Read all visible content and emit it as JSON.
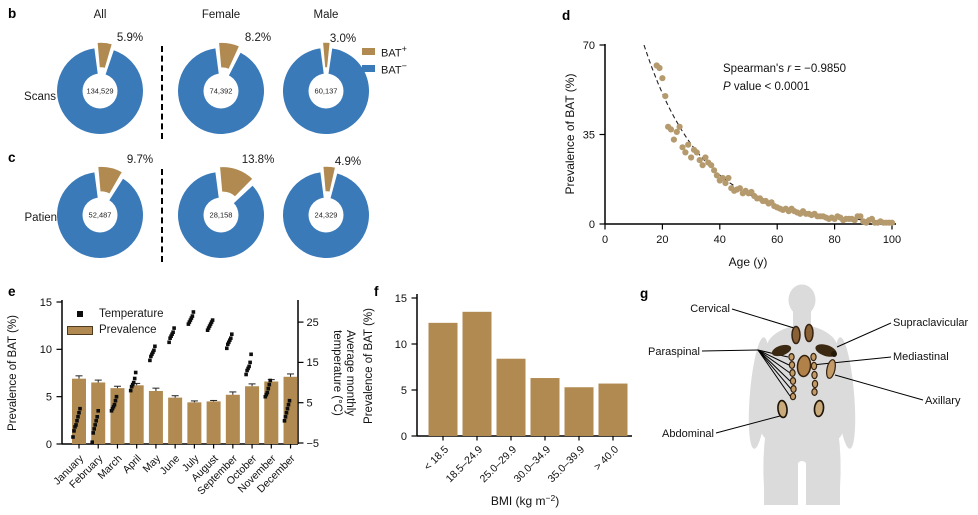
{
  "figure": {
    "panel_letters": {
      "b": "b",
      "c": "c",
      "d": "d",
      "e": "e",
      "f": "f",
      "g": "g"
    }
  },
  "colors": {
    "bat_positive": "#b08a50",
    "bat_negative": "#3a7ab9",
    "bar": "#b08a50",
    "scatter_dot": "#b59a6e",
    "temperature_dot": "#0d0d0d",
    "body_silhouette": "#dbdbdb",
    "depot_dark": "#3b2911",
    "depot_tan": "#c29b66"
  },
  "chart_data": [
    {
      "id": "scans-donuts",
      "type": "pie",
      "row_label": "Scans",
      "columns": [
        "All",
        "Female",
        "Male"
      ],
      "legend": [
        {
          "base": "BAT",
          "sup": "+"
        },
        {
          "base": "BAT",
          "sup": "−"
        }
      ],
      "donuts": [
        {
          "group": "All",
          "bat_positive_pct": 5.9,
          "pct_label": "5.9%",
          "center_count": "134,529"
        },
        {
          "group": "Female",
          "bat_positive_pct": 8.2,
          "pct_label": "8.2%",
          "center_count": "74,392"
        },
        {
          "group": "Male",
          "bat_positive_pct": 3.0,
          "pct_label": "3.0%",
          "center_count": "60,137"
        }
      ]
    },
    {
      "id": "patients-donuts",
      "type": "pie",
      "row_label": "Patients",
      "columns": [
        "All",
        "Female",
        "Male"
      ],
      "donuts": [
        {
          "group": "All",
          "bat_positive_pct": 9.7,
          "pct_label": "9.7%",
          "center_count": "52,487"
        },
        {
          "group": "Female",
          "bat_positive_pct": 13.8,
          "pct_label": "13.8%",
          "center_count": "28,158"
        },
        {
          "group": "Male",
          "bat_positive_pct": 4.9,
          "pct_label": "4.9%",
          "center_count": "24,329"
        }
      ]
    },
    {
      "id": "age-scatter",
      "type": "scatter",
      "xlabel": "Age (y)",
      "ylabel": "Prevalence of BAT (%)",
      "xlim": [
        0,
        100
      ],
      "ylim": [
        0,
        70
      ],
      "xticks": [
        0,
        20,
        40,
        60,
        80,
        100
      ],
      "yticks": [
        0,
        35,
        70
      ],
      "annotation": {
        "line1_pre": "Spearman's ",
        "line1_var": "r",
        "line1_post": " = −0.9850",
        "line2_var": "P",
        "line2_post": " value < 0.0001"
      },
      "fit": {
        "a": 70,
        "k": 0.0492,
        "x0": 13.6,
        "style": "dashed"
      },
      "points": [
        [
          18,
          62
        ],
        [
          19,
          61
        ],
        [
          20,
          57
        ],
        [
          21,
          50
        ],
        [
          22,
          38
        ],
        [
          23,
          37
        ],
        [
          24,
          33
        ],
        [
          25,
          36
        ],
        [
          26,
          38
        ],
        [
          27,
          30
        ],
        [
          28,
          28
        ],
        [
          29,
          31
        ],
        [
          30,
          26
        ],
        [
          31,
          29
        ],
        [
          32,
          28
        ],
        [
          33,
          25
        ],
        [
          34,
          23
        ],
        [
          35,
          26
        ],
        [
          36,
          24
        ],
        [
          37,
          23
        ],
        [
          38,
          21
        ],
        [
          39,
          19
        ],
        [
          40,
          17
        ],
        [
          41,
          18
        ],
        [
          42,
          16
        ],
        [
          43,
          18
        ],
        [
          44,
          14
        ],
        [
          45,
          13
        ],
        [
          46,
          13.5
        ],
        [
          47,
          14
        ],
        [
          48,
          12
        ],
        [
          49,
          13
        ],
        [
          50,
          12
        ],
        [
          51,
          12.5
        ],
        [
          52,
          11
        ],
        [
          53,
          10
        ],
        [
          54,
          10
        ],
        [
          55,
          9
        ],
        [
          56,
          9
        ],
        [
          57,
          8
        ],
        [
          58,
          8.5
        ],
        [
          59,
          7
        ],
        [
          60,
          6.5
        ],
        [
          61,
          6
        ],
        [
          62,
          5.5
        ],
        [
          63,
          6
        ],
        [
          64,
          5
        ],
        [
          65,
          6
        ],
        [
          66,
          5
        ],
        [
          67,
          4.5
        ],
        [
          68,
          4
        ],
        [
          69,
          5
        ],
        [
          70,
          4
        ],
        [
          71,
          4
        ],
        [
          72,
          3.5
        ],
        [
          73,
          4
        ],
        [
          74,
          3
        ],
        [
          75,
          3
        ],
        [
          76,
          3
        ],
        [
          77,
          2.5
        ],
        [
          78,
          2
        ],
        [
          79,
          2.5
        ],
        [
          80,
          2
        ],
        [
          81,
          3
        ],
        [
          82,
          2.5
        ],
        [
          83,
          1.5
        ],
        [
          84,
          2
        ],
        [
          85,
          2
        ],
        [
          86,
          2
        ],
        [
          87,
          1.5
        ],
        [
          88,
          3
        ],
        [
          89,
          3
        ],
        [
          90,
          1
        ],
        [
          91,
          0.5
        ],
        [
          92,
          1.5
        ],
        [
          93,
          2
        ],
        [
          94,
          0.5
        ],
        [
          95,
          0.5
        ],
        [
          96,
          1
        ],
        [
          97,
          0.5
        ],
        [
          98,
          0.5
        ],
        [
          99,
          0.5
        ],
        [
          100,
          0.5
        ]
      ]
    },
    {
      "id": "monthly-combo",
      "type": "bar",
      "categories": [
        "January",
        "February",
        "March",
        "April",
        "May",
        "June",
        "July",
        "August",
        "September",
        "October",
        "November",
        "December"
      ],
      "ylabel_left": "Prevalence of BAT (%)",
      "ylabel_right_line1": "Average monthly",
      "ylabel_right_line2": "temperature (°C)",
      "ylim_left": [
        0,
        15
      ],
      "yticks_left": [
        0,
        5,
        10,
        15
      ],
      "ylim_right": [
        -5,
        30
      ],
      "yticks_right": [
        -5,
        5,
        15,
        25
      ],
      "legend": [
        {
          "label": "Temperature",
          "marker": "square"
        },
        {
          "label": "Prevalence",
          "marker": "bar"
        }
      ],
      "series": [
        {
          "name": "Prevalence",
          "axis": "left",
          "values": [
            6.9,
            6.5,
            5.9,
            6.2,
            5.6,
            4.9,
            4.4,
            4.5,
            5.2,
            6.1,
            6.6,
            7.1
          ],
          "errors": [
            0.3,
            0.25,
            0.2,
            0.2,
            0.3,
            0.2,
            0.15,
            0.1,
            0.3,
            0.25,
            0.2,
            0.3
          ]
        },
        {
          "name": "Temperature",
          "axis": "right",
          "points_by_month": [
            [
              -3.5,
              -2,
              -1,
              -0.5,
              0.5,
              1.5,
              2.5,
              3.5
            ],
            [
              -4.8,
              -2.5,
              -1.5,
              -0.5,
              0.5,
              1.5,
              3
            ],
            [
              3,
              3.5,
              4,
              4.5,
              5.5,
              6.5
            ],
            [
              8,
              9,
              9.5,
              10,
              11,
              12.5
            ],
            [
              15.5,
              16.5,
              17,
              17.5,
              18,
              19
            ],
            [
              20,
              21,
              21.5,
              22,
              22.5,
              23.5
            ],
            [
              24.5,
              25,
              25.5,
              26,
              26.5,
              27.5
            ],
            [
              23,
              23.5,
              24,
              24.5,
              25,
              25.5
            ],
            [
              18.5,
              19.5,
              20,
              20.5,
              21,
              22
            ],
            [
              12,
              13,
              13.5,
              14,
              15,
              17
            ],
            [
              6.5,
              7,
              7.5,
              8.5,
              9.5,
              10.5
            ],
            [
              0.5,
              1.5,
              2.5,
              3.5,
              4.5,
              5.5
            ]
          ]
        }
      ]
    },
    {
      "id": "bmi-bars",
      "type": "bar",
      "categories": [
        "< 18.5",
        "18.5–24.9",
        "25.0–29.9",
        "30.0–34.9",
        "35.0–39.9",
        "> 40.0"
      ],
      "values": [
        12.3,
        13.5,
        8.4,
        6.3,
        5.3,
        5.7
      ],
      "ylabel": "Prevalence of BAT (%)",
      "xlabel_pre": "BMI (kg m",
      "xlabel_sup": "−2",
      "xlabel_post": ")",
      "ylim": [
        0,
        15
      ],
      "yticks": [
        0,
        5,
        10,
        15
      ]
    }
  ],
  "panel_g": {
    "labels": {
      "cervical": "Cervical",
      "supraclavicular": "Supraclavicular",
      "paraspinal": "Paraspinal",
      "mediastinal": "Mediastinal",
      "axillary": "Axillary",
      "abdominal": "Abdominal"
    }
  }
}
